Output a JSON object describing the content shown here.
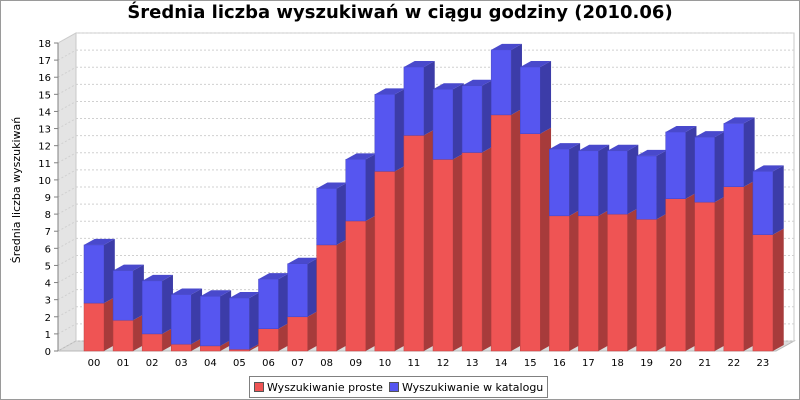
{
  "chart_data": {
    "type": "bar",
    "stacked": true,
    "title": "Średnia liczba wyszukiwań w ciągu godziny (2010.06)",
    "xlabel": "",
    "ylabel": "Średnia liczba wyszukiwań",
    "ylim": [
      0,
      18
    ],
    "yticks": [
      0,
      1,
      2,
      3,
      4,
      5,
      6,
      7,
      8,
      9,
      10,
      11,
      12,
      13,
      14,
      15,
      16,
      17,
      18
    ],
    "grid": true,
    "legend_position": "bottom",
    "categories": [
      "00",
      "01",
      "02",
      "03",
      "04",
      "05",
      "06",
      "07",
      "08",
      "09",
      "10",
      "11",
      "12",
      "13",
      "14",
      "15",
      "16",
      "17",
      "18",
      "19",
      "20",
      "21",
      "22",
      "23"
    ],
    "series": [
      {
        "name": "Wyszukiwanie proste",
        "color": "#ef5454",
        "values": [
          2.8,
          1.8,
          1.0,
          0.4,
          0.3,
          0.1,
          1.3,
          2.0,
          6.2,
          7.6,
          10.5,
          12.6,
          11.2,
          11.6,
          13.8,
          12.7,
          7.9,
          7.9,
          8.0,
          7.7,
          8.9,
          8.7,
          9.6,
          6.8
        ]
      },
      {
        "name": "Wyszukiwanie w katalogu",
        "color": "#5656f0",
        "values": [
          3.4,
          2.9,
          3.1,
          2.9,
          2.9,
          3.0,
          2.9,
          3.1,
          3.3,
          3.6,
          4.5,
          4.0,
          4.1,
          3.9,
          3.8,
          3.9,
          3.9,
          3.8,
          3.7,
          3.7,
          3.9,
          3.8,
          3.7,
          3.7
        ]
      }
    ]
  }
}
